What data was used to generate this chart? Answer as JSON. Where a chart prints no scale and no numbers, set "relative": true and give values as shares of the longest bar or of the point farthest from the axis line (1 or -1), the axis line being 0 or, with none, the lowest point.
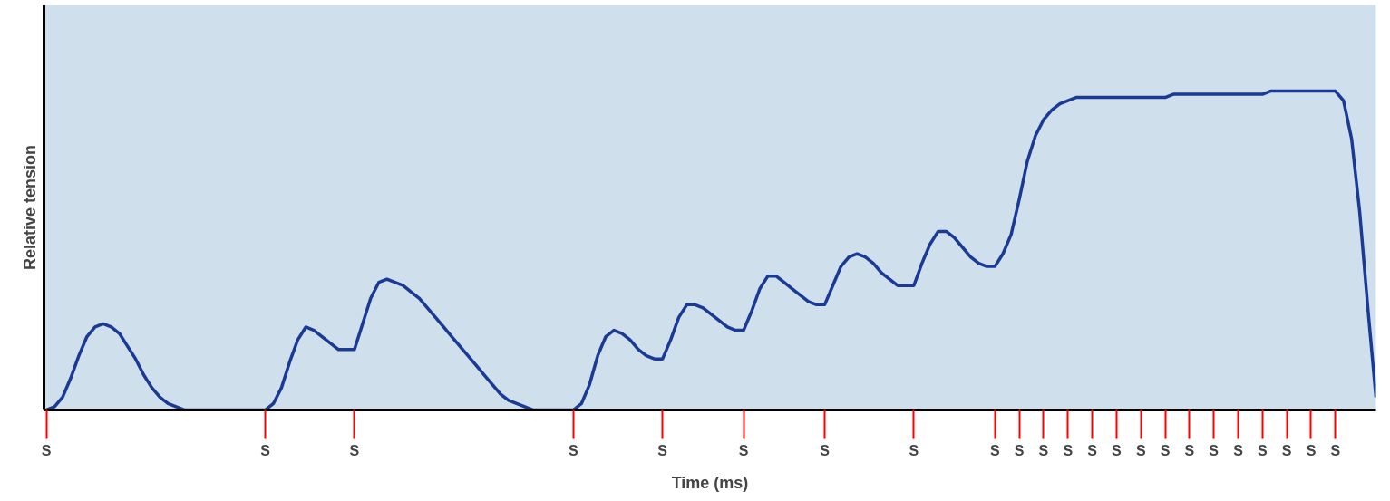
{
  "chart_data": {
    "type": "line",
    "relative": true,
    "xlabel": "Time (ms)",
    "ylabel": "Relative tension",
    "grid": false,
    "marker": "none",
    "line_style": "solid",
    "categories": [
      "S",
      null,
      null,
      null,
      null,
      null,
      null,
      null,
      null,
      null,
      null,
      null,
      null,
      null,
      null,
      null,
      null,
      null,
      null,
      null,
      null,
      null,
      null,
      null,
      null,
      null,
      null,
      "S",
      null,
      null,
      null,
      null,
      null,
      null,
      null,
      null,
      null,
      null,
      "S",
      null,
      null,
      null,
      null,
      null,
      null,
      null,
      null,
      null,
      null,
      null,
      null,
      null,
      null,
      null,
      null,
      null,
      null,
      null,
      null,
      null,
      null,
      null,
      null,
      null,
      null,
      "S",
      null,
      null,
      null,
      null,
      null,
      null,
      null,
      null,
      null,
      null,
      "S",
      null,
      null,
      null,
      null,
      null,
      null,
      null,
      null,
      null,
      "S",
      null,
      null,
      null,
      null,
      null,
      null,
      null,
      null,
      null,
      "S",
      null,
      null,
      null,
      null,
      null,
      null,
      null,
      null,
      null,
      null,
      "S",
      null,
      null,
      null,
      null,
      null,
      null,
      null,
      null,
      null,
      "S",
      null,
      null,
      "S",
      null,
      null,
      "S",
      null,
      null,
      "S",
      null,
      null,
      "S",
      null,
      null,
      "S",
      null,
      null,
      "S",
      null,
      null,
      "S",
      null,
      null,
      "S",
      null,
      null,
      "S",
      null,
      null,
      "S",
      null,
      null,
      "S",
      null,
      null,
      "S",
      null,
      null,
      "S",
      null,
      null,
      "S",
      null,
      null,
      null,
      null,
      null
    ],
    "series": [
      {
        "color": "#1a3a94",
        "values": [
          0,
          0.01,
          0.04,
          0.1,
          0.17,
          0.23,
          0.26,
          0.27,
          0.26,
          0.24,
          0.2,
          0.16,
          0.11,
          0.07,
          0.04,
          0.02,
          0.01,
          0,
          0,
          0,
          0,
          0,
          0,
          0,
          0,
          0,
          0,
          0,
          0.02,
          0.07,
          0.15,
          0.22,
          0.26,
          0.25,
          0.23,
          0.21,
          0.19,
          0.19,
          0.19,
          0.27,
          0.35,
          0.4,
          0.41,
          0.4,
          0.39,
          0.37,
          0.35,
          0.32,
          0.29,
          0.26,
          0.23,
          0.2,
          0.17,
          0.14,
          0.11,
          0.08,
          0.05,
          0.03,
          0.02,
          0.01,
          0,
          0,
          0,
          0,
          0,
          0,
          0.02,
          0.08,
          0.17,
          0.23,
          0.25,
          0.24,
          0.22,
          0.19,
          0.17,
          0.16,
          0.16,
          0.22,
          0.29,
          0.33,
          0.33,
          0.32,
          0.3,
          0.28,
          0.26,
          0.25,
          0.25,
          0.31,
          0.38,
          0.42,
          0.42,
          0.4,
          0.38,
          0.36,
          0.34,
          0.33,
          0.33,
          0.39,
          0.45,
          0.48,
          0.49,
          0.48,
          0.46,
          0.43,
          0.41,
          0.39,
          0.39,
          0.39,
          0.46,
          0.52,
          0.56,
          0.56,
          0.54,
          0.51,
          0.48,
          0.46,
          0.45,
          0.45,
          0.49,
          0.55,
          0.66,
          0.78,
          0.86,
          0.91,
          0.94,
          0.96,
          0.97,
          0.98,
          0.98,
          0.98,
          0.98,
          0.98,
          0.98,
          0.98,
          0.98,
          0.98,
          0.98,
          0.98,
          0.98,
          0.99,
          0.99,
          0.99,
          0.99,
          0.99,
          0.99,
          0.99,
          0.99,
          0.99,
          0.99,
          0.99,
          0.99,
          1.0,
          1.0,
          1.0,
          1.0,
          1.0,
          1.0,
          1.0,
          1.0,
          1.0,
          0.97,
          0.85,
          0.62,
          0.32,
          0.04
        ]
      }
    ]
  }
}
